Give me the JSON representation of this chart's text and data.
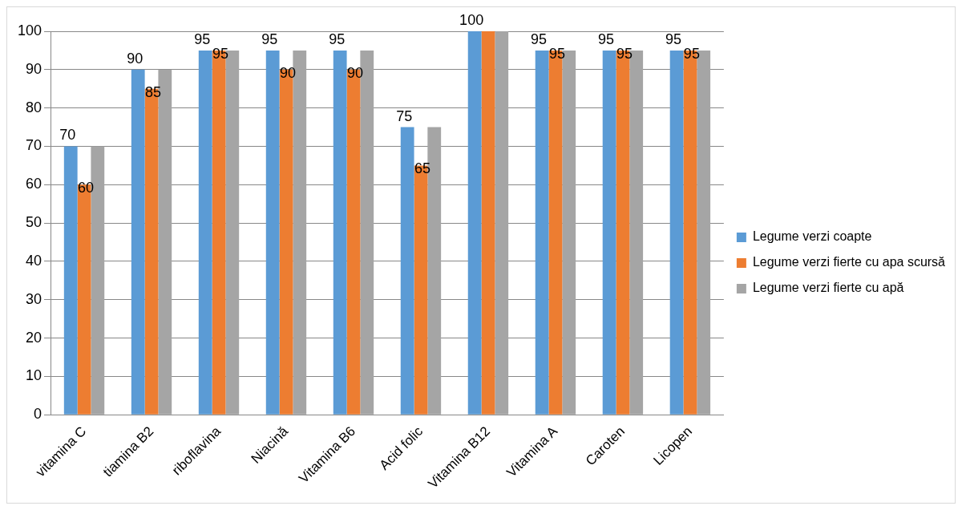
{
  "chart_data": {
    "type": "bar",
    "categories": [
      "vitamina C",
      "tiamina B2",
      "riboflavina",
      "Niacină",
      "Vitamina B6",
      "Acid folic",
      "Vitamina B12",
      "Vitamina A",
      "Caroten",
      "Licopen"
    ],
    "series": [
      {
        "name": "Legume verzi coapte",
        "color": "#5b9bd5",
        "values": [
          70,
          90,
          95,
          95,
          95,
          75,
          100,
          95,
          95,
          95
        ],
        "value_labels": [
          "70",
          "90",
          "95",
          "95",
          "95",
          "75",
          "100",
          "95",
          "95",
          "95"
        ]
      },
      {
        "name": "Legume verzi fierte cu apa scursă",
        "color": "#ed7d31",
        "values": [
          60,
          85,
          95,
          90,
          90,
          65,
          100,
          95,
          95,
          95
        ],
        "value_labels": [
          "60",
          "85",
          "95",
          "90",
          "90",
          "65",
          null,
          "95",
          "95",
          "95"
        ]
      },
      {
        "name": "Legume verzi fierte cu apă",
        "color": "#a5a5a5",
        "values": [
          70,
          90,
          95,
          95,
          95,
          75,
          100,
          95,
          95,
          95
        ]
      }
    ],
    "ylim": [
      0,
      100
    ],
    "yticks": [
      0,
      10,
      20,
      30,
      40,
      50,
      60,
      70,
      80,
      90,
      100
    ],
    "grid": "y",
    "legend": "right"
  }
}
